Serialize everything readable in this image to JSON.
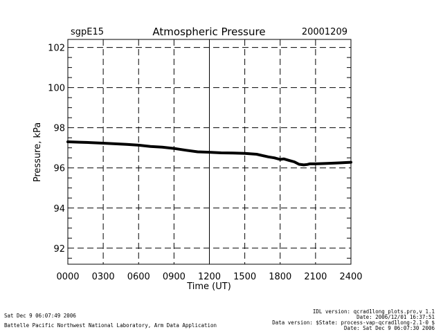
{
  "header": {
    "site": "sgpE15",
    "title": "Atmospheric Pressure",
    "date": "20001209"
  },
  "chart_data": {
    "type": "line",
    "title": "Atmospheric Pressure",
    "xlabel": "Time (UT)",
    "ylabel": "Pressure, kPa",
    "xlim": [
      0,
      24
    ],
    "ylim": [
      91.2,
      102.4
    ],
    "x_ticks": [
      0,
      3,
      6,
      9,
      12,
      15,
      18,
      21,
      24
    ],
    "x_tick_labels": [
      "0000",
      "0300",
      "0600",
      "0900",
      "1200",
      "1500",
      "1800",
      "2100",
      "2400"
    ],
    "y_ticks": [
      92,
      94,
      96,
      98,
      100,
      102
    ],
    "y_tick_labels": [
      "92",
      "94",
      "96",
      "98",
      "100",
      "102"
    ],
    "grid": "dashed",
    "series": [
      {
        "color": "#000000",
        "x": [
          0,
          1,
          2,
          3,
          4,
          5,
          6,
          7,
          8,
          9,
          10,
          11,
          12,
          13,
          14,
          15,
          16,
          17,
          17.5,
          18,
          18.3,
          18.7,
          19.2,
          19.6,
          20,
          20.3,
          20.5,
          21,
          22,
          23,
          24
        ],
        "y": [
          97.3,
          97.28,
          97.26,
          97.23,
          97.2,
          97.17,
          97.13,
          97.07,
          97.03,
          96.97,
          96.88,
          96.8,
          96.78,
          96.75,
          96.74,
          96.72,
          96.68,
          96.55,
          96.5,
          96.42,
          96.45,
          96.38,
          96.3,
          96.18,
          96.15,
          96.17,
          96.2,
          96.2,
          96.22,
          96.25,
          96.28
        ]
      }
    ]
  },
  "footer": {
    "left_line1": "Sat Dec  9 06:07:49 2006",
    "left_line2": "Battelle Pacific Northwest National Laboratory, Arm Data Application",
    "right_line1": "IDL version: qcrad1long_plots.pro,v 1.1",
    "right_line2": "Date: 2006/12/01 16:37:51",
    "right_line3": "Data version: $State: process-vap-qcrad1long-2.1-0 $",
    "right_line4": "Date: Sat Dec  9 06:07:30 2006"
  }
}
